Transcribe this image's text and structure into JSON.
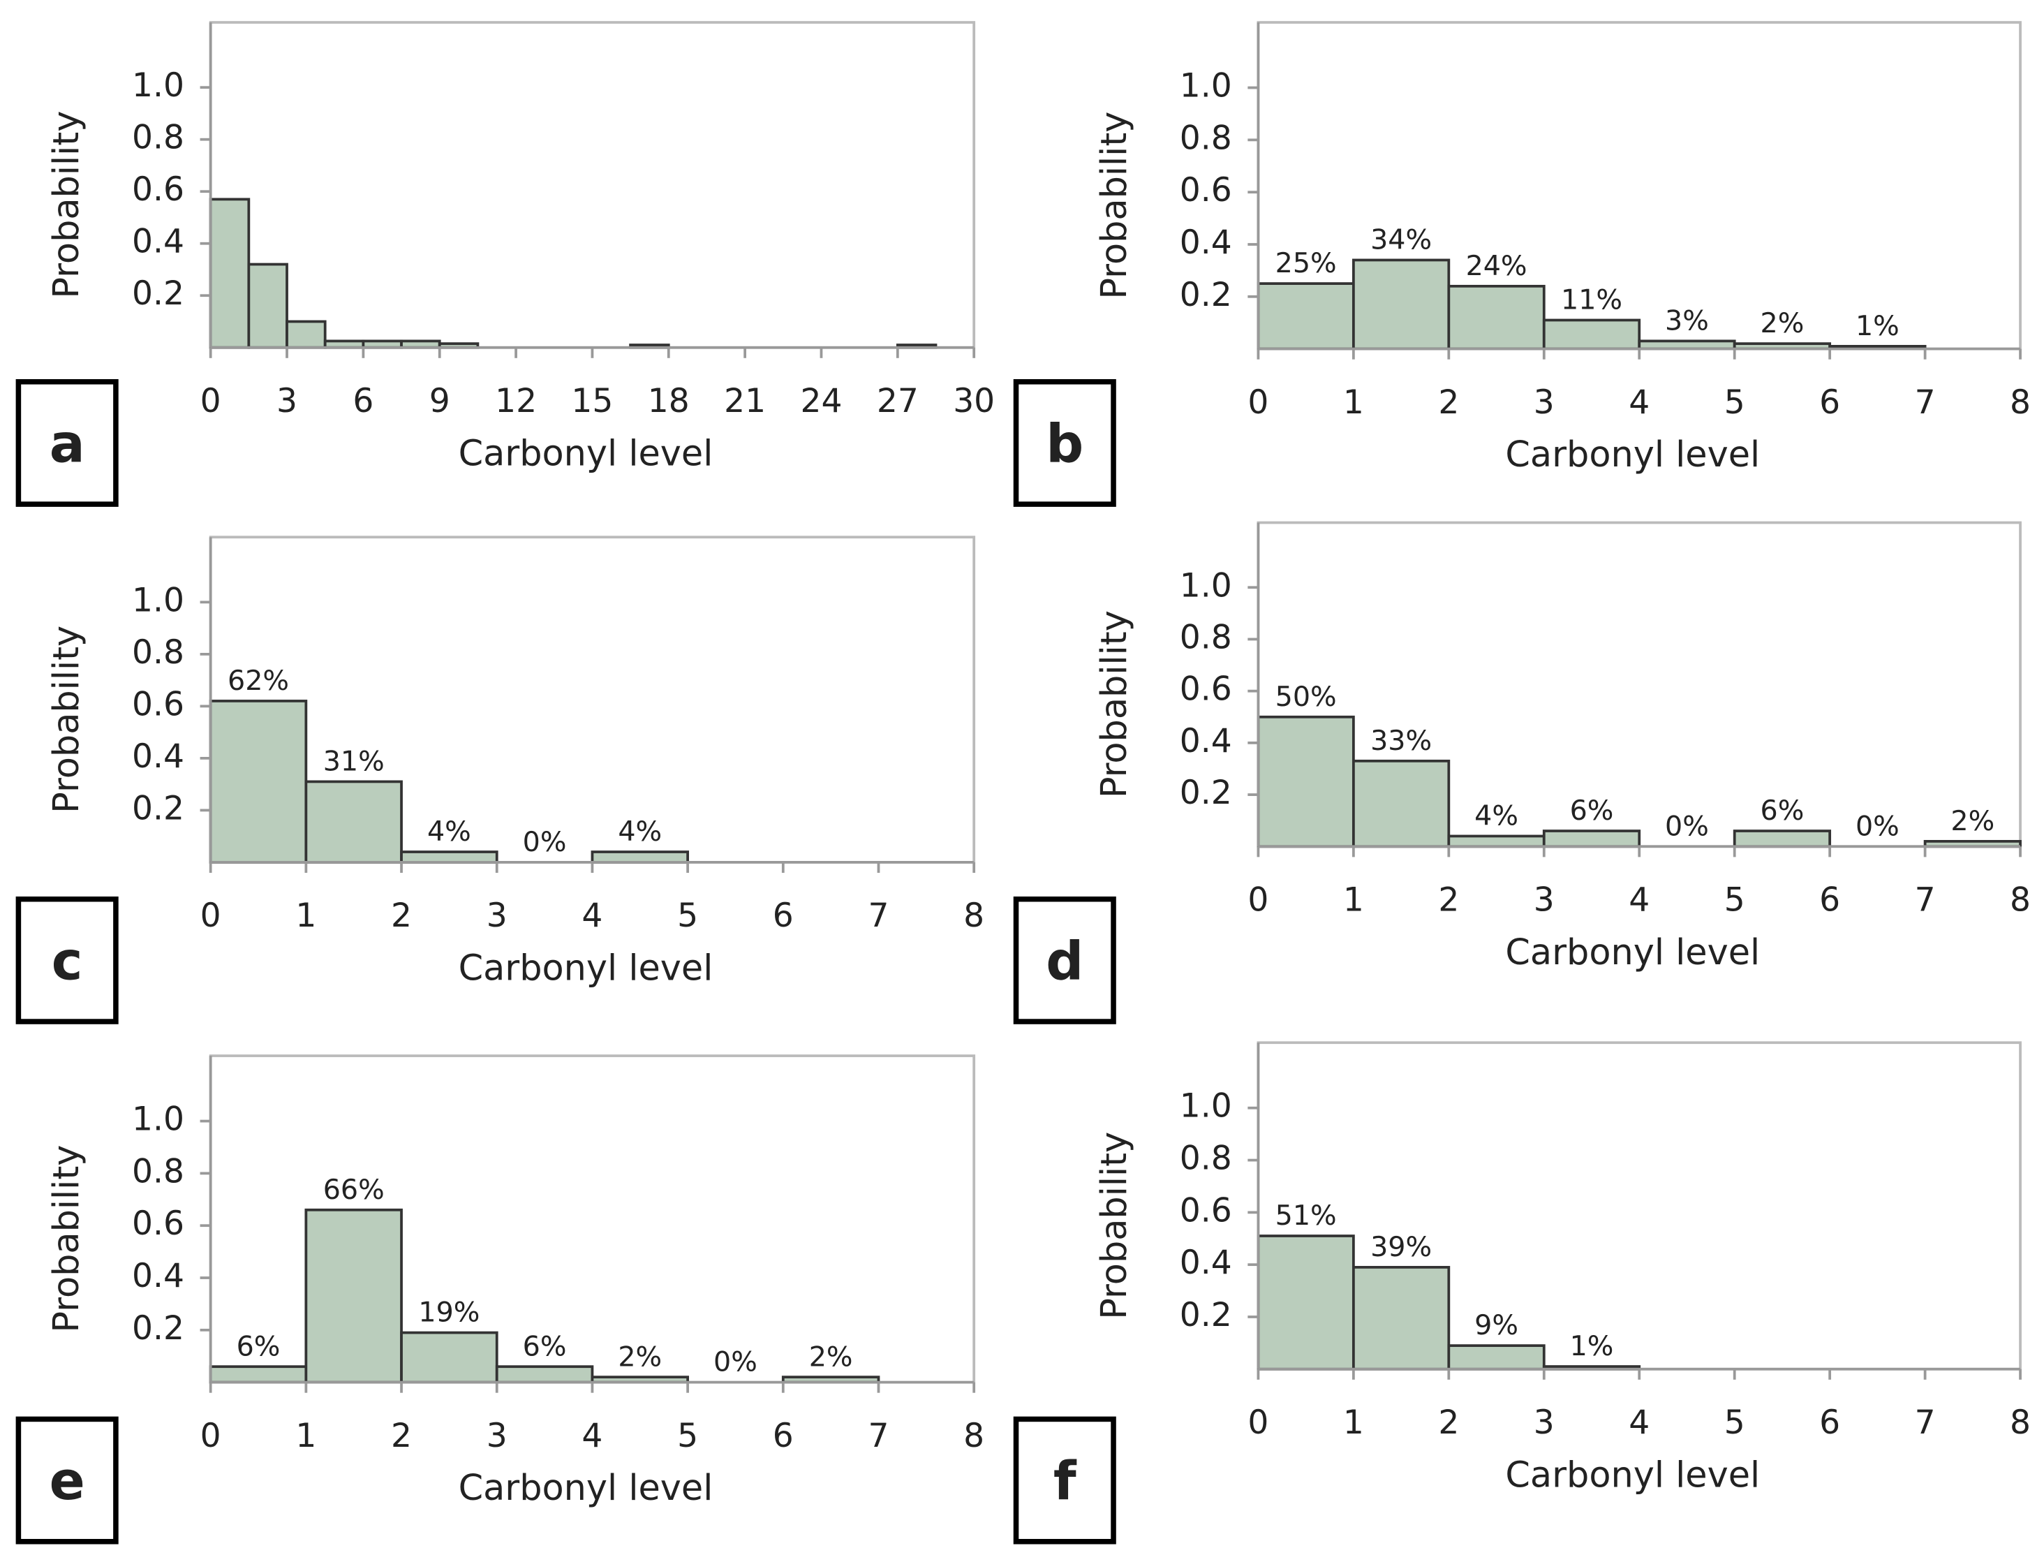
{
  "chart_data": [
    {
      "type": "histogram",
      "panel": "a",
      "ylabel": "Probability",
      "xlabel": "Carbonyl level",
      "bins": [
        0,
        1.5,
        3,
        4.5,
        6,
        7.5,
        9,
        10.5,
        12,
        13.5,
        15,
        16.5,
        18,
        19.5,
        21,
        22.5,
        24,
        25.5,
        27,
        28.5,
        30
      ],
      "counts": [
        0.57,
        0.32,
        0.1,
        0.025,
        0.025,
        0.025,
        0.015,
        0,
        0,
        0,
        0,
        0.01,
        0,
        0,
        0,
        0,
        0,
        0,
        0.01,
        0
      ],
      "xlim": [
        0,
        30
      ],
      "xticks": [
        0,
        3,
        6,
        9,
        12,
        15,
        18,
        21,
        24,
        27,
        30
      ],
      "ylim": [
        0,
        1.25
      ],
      "yticks": [
        0.2,
        0.4,
        0.6,
        0.8,
        {
          "value": 1,
          "label": "1.0"
        }
      ],
      "color": "#bacdbc"
    },
    {
      "type": "histogram",
      "panel": "b",
      "ylabel": "Probability",
      "xlabel": "Carbonyl level",
      "bins": [
        0,
        1,
        2,
        3,
        4,
        5,
        6,
        7
      ],
      "counts": [
        0.25,
        0.34,
        0.24,
        0.11,
        0.03,
        0.02,
        0.01
      ],
      "value_labels": [
        "25%",
        "34%",
        "24%",
        "11%",
        "3%",
        "2%",
        "1%"
      ],
      "xlim": [
        0,
        8
      ],
      "xticks": [
        0,
        1,
        2,
        3,
        4,
        5,
        6,
        7,
        8
      ],
      "ylim": [
        0,
        1.25
      ],
      "yticks": [
        0.2,
        0.4,
        0.6,
        0.8,
        {
          "value": 1,
          "label": "1.0"
        }
      ],
      "color": "#bacdbc"
    },
    {
      "type": "histogram",
      "panel": "c",
      "ylabel": "Probability",
      "xlabel": "Carbonyl level",
      "bins": [
        0,
        1,
        2,
        3,
        4,
        5
      ],
      "counts": [
        0.62,
        0.31,
        0.04,
        0,
        0.04
      ],
      "value_labels": [
        "62%",
        "31%",
        "4%",
        "0%",
        "4%"
      ],
      "xlim": [
        0,
        8
      ],
      "xticks": [
        0,
        1,
        2,
        3,
        4,
        5,
        6,
        7,
        8
      ],
      "ylim": [
        0,
        1.25
      ],
      "yticks": [
        0.2,
        0.4,
        0.6,
        0.8,
        {
          "value": 1,
          "label": "1.0"
        }
      ],
      "color": "#bacdbc"
    },
    {
      "type": "histogram",
      "panel": "d",
      "ylabel": "Probability",
      "xlabel": "Carbonyl level",
      "bins": [
        0,
        1,
        2,
        3,
        4,
        5,
        6,
        7,
        8
      ],
      "counts": [
        0.5,
        0.33,
        0.04,
        0.06,
        0,
        0.06,
        0,
        0.02
      ],
      "value_labels": [
        "50%",
        "33%",
        "4%",
        "6%",
        "0%",
        "6%",
        "0%",
        "2%"
      ],
      "xlim": [
        0,
        8
      ],
      "xticks": [
        0,
        1,
        2,
        3,
        4,
        5,
        6,
        7,
        8
      ],
      "ylim": [
        0,
        1.25
      ],
      "yticks": [
        0.2,
        0.4,
        0.6,
        0.8,
        {
          "value": 1,
          "label": "1.0"
        }
      ],
      "color": "#bacdbc"
    },
    {
      "type": "histogram",
      "panel": "e",
      "ylabel": "Probability",
      "xlabel": "Carbonyl level",
      "bins": [
        0,
        1,
        2,
        3,
        4,
        5,
        6,
        7
      ],
      "counts": [
        0.06,
        0.66,
        0.19,
        0.06,
        0.02,
        0,
        0.02
      ],
      "value_labels": [
        "6%",
        "66%",
        "19%",
        "6%",
        "2%",
        "0%",
        "2%"
      ],
      "xlim": [
        0,
        8
      ],
      "xticks": [
        0,
        1,
        2,
        3,
        4,
        5,
        6,
        7,
        8
      ],
      "ylim": [
        0,
        1.25
      ],
      "yticks": [
        0.2,
        0.4,
        0.6,
        0.8,
        {
          "value": 1,
          "label": "1.0"
        }
      ],
      "color": "#bacdbc"
    },
    {
      "type": "histogram",
      "panel": "f",
      "ylabel": "Probability",
      "xlabel": "Carbonyl level",
      "bins": [
        0,
        1,
        2,
        3,
        4
      ],
      "counts": [
        0.51,
        0.39,
        0.09,
        0.01
      ],
      "value_labels": [
        "51%",
        "39%",
        "9%",
        "1%"
      ],
      "xlim": [
        0,
        8
      ],
      "xticks": [
        0,
        1,
        2,
        3,
        4,
        5,
        6,
        7,
        8
      ],
      "ylim": [
        0,
        1.25
      ],
      "yticks": [
        0.2,
        0.4,
        0.6,
        0.8,
        {
          "value": 1,
          "label": "1.0"
        }
      ],
      "color": "#bacdbc"
    }
  ]
}
